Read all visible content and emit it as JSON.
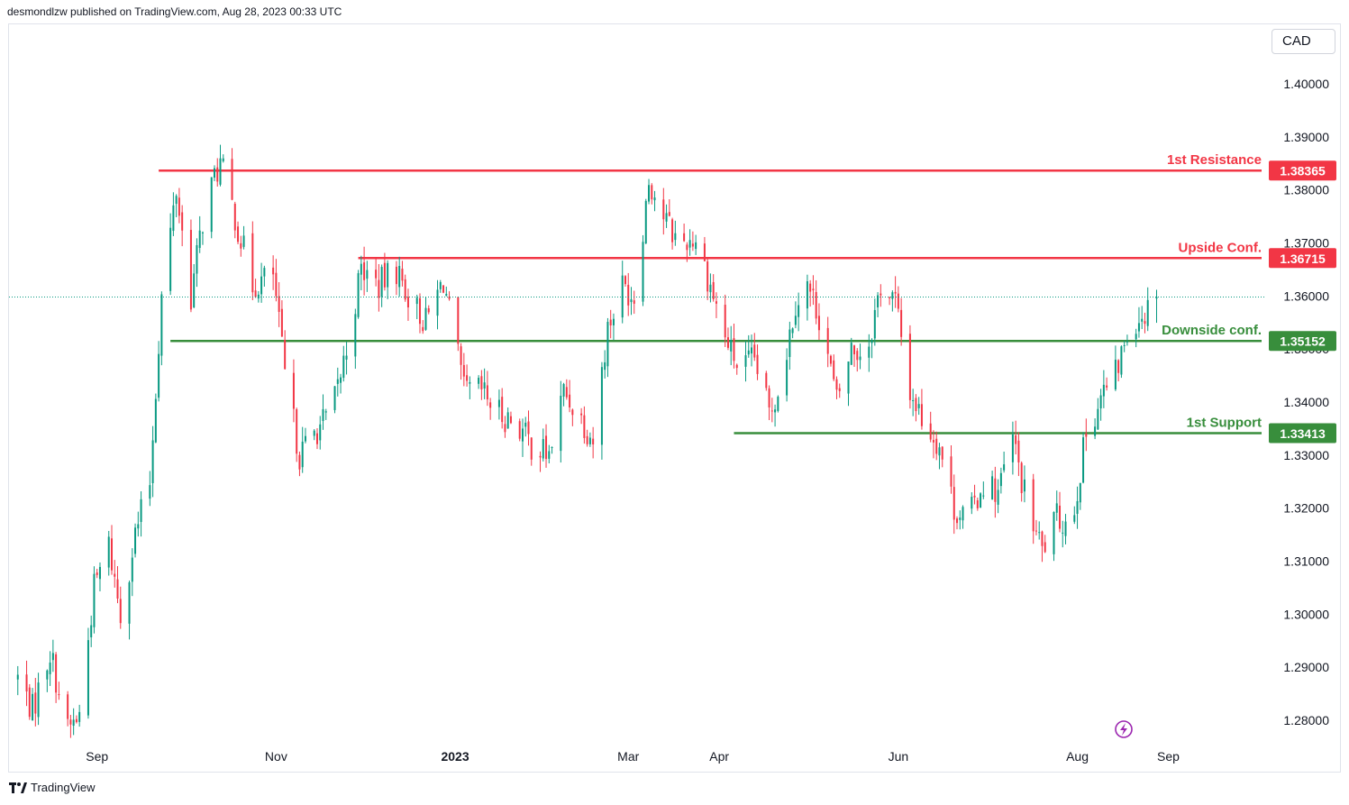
{
  "header": {
    "publisher_text": "desmondlzw published on TradingView.com, Aug 28, 2023 00:33 UTC"
  },
  "currency": "CAD",
  "footer": {
    "brand": "TradingView",
    "logo_icon": "tradingview-logo-icon"
  },
  "colors": {
    "up": "#089981",
    "down": "#f23645",
    "resistance": "#f23645",
    "support": "#388e3c",
    "last_price": "#089981",
    "replay_icon": "#9c27b0"
  },
  "chart_data": {
    "type": "candlestick",
    "symbol_currency": "CAD",
    "ylim": [
      1.2745,
      1.4075
    ],
    "y_ticks": [
      "1.40000",
      "1.39000",
      "1.38000",
      "1.37000",
      "1.36000",
      "1.35000",
      "1.34000",
      "1.33000",
      "1.32000",
      "1.31000",
      "1.30000",
      "1.29000",
      "1.28000"
    ],
    "x_ticks": [
      {
        "label": "Sep",
        "date": "2022-09-01"
      },
      {
        "label": "Nov",
        "date": "2022-11-01"
      },
      {
        "label": "2023",
        "date": "2023-01-01",
        "bold": true
      },
      {
        "label": "Mar",
        "date": "2023-03-01"
      },
      {
        "label": "Apr",
        "date": "2023-04-01"
      },
      {
        "label": "Jun",
        "date": "2023-06-01"
      },
      {
        "label": "Aug",
        "date": "2023-08-01"
      },
      {
        "label": "Sep",
        "date": "2023-09-01"
      }
    ],
    "x_range": [
      "2022-08-02",
      "2023-10-04"
    ],
    "last_price": 1.3598,
    "levels": [
      {
        "name": "1st Resistance",
        "value": 1.38365,
        "label": "1.38365",
        "kind": "resistance",
        "start_date": "2022-09-22"
      },
      {
        "name": "Upside Conf.",
        "value": 1.36715,
        "label": "1.36715",
        "kind": "resistance",
        "start_date": "2022-11-29"
      },
      {
        "name": "Downside conf.",
        "value": 1.35152,
        "label": "1.35152",
        "kind": "support",
        "start_date": "2022-09-26"
      },
      {
        "name": "1st Support",
        "value": 1.33413,
        "label": "1.33413",
        "kind": "support",
        "start_date": "2023-04-06"
      }
    ],
    "waypoints": [
      [
        "2022-08-05",
        1.288
      ],
      [
        "2022-08-10",
        1.282
      ],
      [
        "2022-08-16",
        1.293
      ],
      [
        "2022-08-22",
        1.278
      ],
      [
        "2022-08-26",
        1.281
      ],
      [
        "2022-08-31",
        1.305
      ],
      [
        "2022-09-05",
        1.313
      ],
      [
        "2022-09-09",
        1.3
      ],
      [
        "2022-09-14",
        1.315
      ],
      [
        "2022-09-19",
        1.325
      ],
      [
        "2022-09-23",
        1.36
      ],
      [
        "2022-09-28",
        1.38
      ],
      [
        "2022-10-03",
        1.36
      ],
      [
        "2022-10-08",
        1.378
      ],
      [
        "2022-10-13",
        1.385
      ],
      [
        "2022-10-18",
        1.375
      ],
      [
        "2022-10-24",
        1.362
      ],
      [
        "2022-10-31",
        1.364
      ],
      [
        "2022-11-04",
        1.345
      ],
      [
        "2022-11-09",
        1.33
      ],
      [
        "2022-11-15",
        1.335
      ],
      [
        "2022-11-20",
        1.338
      ],
      [
        "2022-11-25",
        1.35
      ],
      [
        "2022-11-30",
        1.365
      ],
      [
        "2022-12-06",
        1.362
      ],
      [
        "2022-12-12",
        1.365
      ],
      [
        "2022-12-17",
        1.359
      ],
      [
        "2022-12-22",
        1.355
      ],
      [
        "2022-12-28",
        1.363
      ],
      [
        "2023-01-04",
        1.342
      ],
      [
        "2023-01-10",
        1.342
      ],
      [
        "2023-01-16",
        1.338
      ],
      [
        "2023-01-22",
        1.336
      ],
      [
        "2023-01-27",
        1.332
      ],
      [
        "2023-02-02",
        1.33
      ],
      [
        "2023-02-07",
        1.342
      ],
      [
        "2023-02-12",
        1.338
      ],
      [
        "2023-02-17",
        1.333
      ],
      [
        "2023-02-22",
        1.354
      ],
      [
        "2023-02-27",
        1.362
      ],
      [
        "2023-03-03",
        1.36
      ],
      [
        "2023-03-08",
        1.382
      ],
      [
        "2023-03-13",
        1.375
      ],
      [
        "2023-03-18",
        1.37
      ],
      [
        "2023-03-24",
        1.371
      ],
      [
        "2023-03-29",
        1.362
      ],
      [
        "2023-04-03",
        1.352
      ],
      [
        "2023-04-08",
        1.346
      ],
      [
        "2023-04-13",
        1.348
      ],
      [
        "2023-04-18",
        1.338
      ],
      [
        "2023-04-22",
        1.344
      ],
      [
        "2023-04-27",
        1.359
      ],
      [
        "2023-05-01",
        1.362
      ],
      [
        "2023-05-06",
        1.355
      ],
      [
        "2023-05-11",
        1.34
      ],
      [
        "2023-05-16",
        1.35
      ],
      [
        "2023-05-21",
        1.349
      ],
      [
        "2023-05-26",
        1.362
      ],
      [
        "2023-05-31",
        1.359
      ],
      [
        "2023-06-05",
        1.342
      ],
      [
        "2023-06-10",
        1.336
      ],
      [
        "2023-06-15",
        1.332
      ],
      [
        "2023-06-20",
        1.32
      ],
      [
        "2023-06-25",
        1.318
      ],
      [
        "2023-06-30",
        1.325
      ],
      [
        "2023-07-05",
        1.323
      ],
      [
        "2023-07-10",
        1.333
      ],
      [
        "2023-07-15",
        1.32
      ],
      [
        "2023-07-20",
        1.312
      ],
      [
        "2023-07-25",
        1.318
      ],
      [
        "2023-07-30",
        1.317
      ],
      [
        "2023-08-04",
        1.334
      ],
      [
        "2023-08-09",
        1.341
      ],
      [
        "2023-08-14",
        1.345
      ],
      [
        "2023-08-19",
        1.355
      ],
      [
        "2023-08-24",
        1.357
      ],
      [
        "2023-08-28",
        1.3598
      ]
    ]
  }
}
